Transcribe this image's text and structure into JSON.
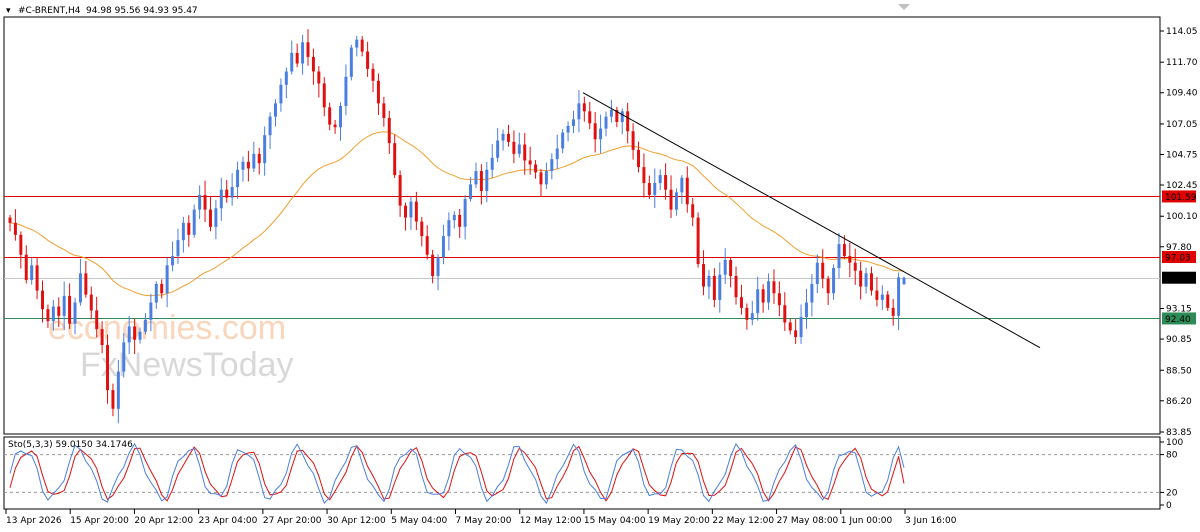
{
  "header": {
    "symbol_text": "#C-BRENT,H4",
    "ohlc_text": "94.98 95.56 94.93 95.47"
  },
  "watermark": {
    "brand_text": "economies.com",
    "brand2_text": "FxNewsToday"
  },
  "chart_data": [
    {
      "type": "candlestick",
      "symbol": "#C-BRENT",
      "timeframe": "H4",
      "ohlc": {
        "open": 94.98,
        "high": 95.56,
        "low": 94.93,
        "close": 95.47
      },
      "price_axis": {
        "min": 83.85,
        "max": 115.0,
        "ticks": [
          "114.05",
          "111.70",
          "109.40",
          "107.05",
          "104.75",
          "102.45",
          "100.10",
          "97.80",
          "95.47",
          "93.15",
          "90.85",
          "88.50",
          "86.20",
          "83.85"
        ]
      },
      "time_axis": {
        "ticks": [
          "13 Apr 2026",
          "15 Apr 20:00",
          "20 Apr 12:00",
          "23 Apr 04:00",
          "27 Apr 20:00",
          "30 Apr 12:00",
          "5 May 04:00",
          "7 May 20:00",
          "12 May 12:00",
          "15 May 04:00",
          "19 May 20:00",
          "22 May 12:00",
          "27 May 08:00",
          "1 Jun 00:00",
          "3 Jun 16:00"
        ]
      },
      "horizontal_lines": [
        {
          "label": "101.59",
          "value": 101.59,
          "color": "#e00000"
        },
        {
          "label": "97.03",
          "value": 97.03,
          "color": "#e00000"
        },
        {
          "label": "95.47",
          "value": 95.47,
          "color": "#c8c8c8"
        },
        {
          "label": "92.40",
          "value": 92.4,
          "color": "#2e8b57"
        }
      ],
      "trendline": {
        "from_price": 109.4,
        "to_price": 90.2,
        "color": "#000000"
      },
      "moving_average_color": "#f0a030",
      "bull_color": "#4a7fe0",
      "bear_color": "#e01010",
      "closes": [
        99.6,
        98.7,
        97.2,
        95.3,
        96.4,
        94.5,
        93.1,
        92.2,
        93.3,
        92.6,
        94.1,
        92.0,
        93.6,
        95.8,
        94.2,
        93.0,
        91.6,
        90.4,
        87.0,
        85.6,
        88.4,
        90.6,
        91.8,
        90.8,
        91.4,
        92.3,
        93.6,
        95.0,
        94.3,
        96.4,
        97.1,
        98.3,
        99.6,
        98.7,
        100.6,
        101.7,
        100.6,
        99.3,
        100.7,
        102.1,
        101.5,
        102.3,
        103.6,
        104.2,
        103.7,
        104.8,
        104.1,
        106.2,
        107.6,
        108.6,
        110.0,
        111.0,
        112.4,
        111.6,
        113.2,
        112.1,
        111.0,
        110.1,
        108.3,
        107.0,
        106.8,
        108.4,
        110.6,
        112.8,
        113.4,
        112.5,
        111.2,
        110.3,
        108.6,
        107.5,
        105.6,
        103.2,
        100.9,
        100.0,
        101.2,
        99.7,
        98.6,
        97.2,
        95.6,
        97.0,
        98.6,
        99.8,
        100.2,
        99.3,
        101.4,
        102.5,
        103.5,
        102.0,
        103.6,
        104.5,
        105.8,
        106.3,
        105.7,
        104.8,
        105.5,
        104.3,
        104.0,
        103.4,
        102.5,
        103.5,
        104.4,
        105.2,
        106.4,
        106.9,
        107.4,
        108.6,
        108.0,
        107.1,
        105.9,
        106.7,
        107.6,
        108.1,
        107.2,
        108.0,
        106.5,
        105.1,
        103.8,
        102.6,
        101.7,
        102.6,
        103.2,
        102.1,
        100.6,
        101.9,
        103.0,
        101.0,
        100.0,
        96.5,
        94.8,
        95.6,
        93.8,
        95.7,
        96.8,
        95.6,
        94.0,
        93.2,
        92.3,
        92.8,
        94.6,
        93.6,
        95.2,
        94.3,
        93.4,
        92.1,
        91.5,
        91.0,
        92.5,
        93.6,
        95.0,
        96.6,
        95.4,
        94.3,
        96.2,
        98.0,
        97.1,
        96.6,
        96.0,
        94.8,
        95.8,
        94.5,
        93.8,
        94.2,
        93.2,
        92.6,
        95.5,
        95.47
      ],
      "stochastic": {
        "label": "Sto(5,3,3) 59.0150 34.1746",
        "main": 59.015,
        "signal": 34.1746,
        "levels": [
          "100",
          "80",
          "20",
          "0"
        ],
        "main_color": "#4a7fe0",
        "signal_color": "#e01010"
      }
    }
  ]
}
